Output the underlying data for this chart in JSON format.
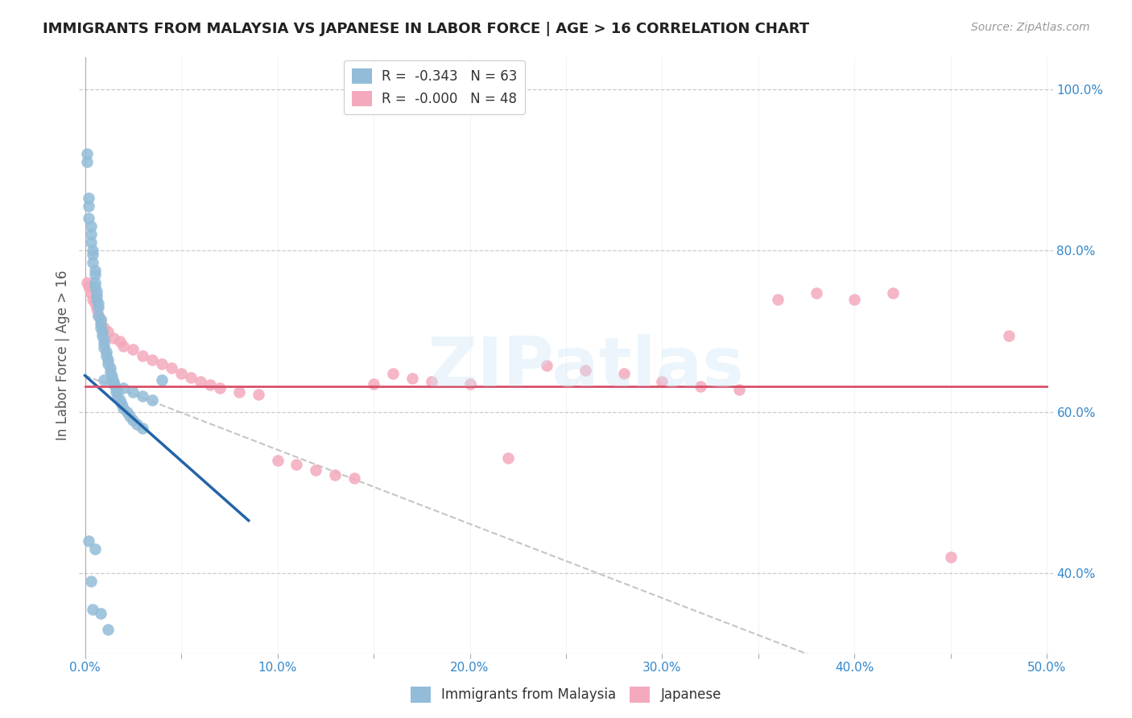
{
  "title": "IMMIGRANTS FROM MALAYSIA VS JAPANESE IN LABOR FORCE | AGE > 16 CORRELATION CHART",
  "source": "Source: ZipAtlas.com",
  "ylabel_left": "In Labor Force | Age > 16",
  "xlim": [
    -0.003,
    0.503
  ],
  "ylim": [
    0.3,
    1.04
  ],
  "xtick_positions": [
    0.0,
    0.05,
    0.1,
    0.15,
    0.2,
    0.25,
    0.3,
    0.35,
    0.4,
    0.45,
    0.5
  ],
  "xticklabels": [
    "0.0%",
    "",
    "10.0%",
    "",
    "20.0%",
    "",
    "30.0%",
    "",
    "40.0%",
    "",
    "50.0%"
  ],
  "yticks_right": [
    0.4,
    0.6,
    0.8,
    1.0
  ],
  "yticklabels_right": [
    "40.0%",
    "60.0%",
    "80.0%",
    "100.0%"
  ],
  "watermark": "ZIPatlas",
  "legend_line1": "R =  -0.343   N = 63",
  "legend_line2": "R =  -0.000   N = 48",
  "color_blue": "#92bcd8",
  "color_pink": "#f4a9bc",
  "trend_blue": "#2563a8",
  "trend_red": "#d94f6a",
  "trend_gray": "#bbbbbb",
  "blue_x": [
    0.001,
    0.001,
    0.002,
    0.002,
    0.002,
    0.003,
    0.003,
    0.003,
    0.004,
    0.004,
    0.004,
    0.005,
    0.005,
    0.005,
    0.005,
    0.006,
    0.006,
    0.006,
    0.007,
    0.007,
    0.007,
    0.008,
    0.008,
    0.008,
    0.009,
    0.009,
    0.01,
    0.01,
    0.01,
    0.011,
    0.011,
    0.012,
    0.012,
    0.013,
    0.013,
    0.014,
    0.014,
    0.015,
    0.015,
    0.016,
    0.016,
    0.017,
    0.018,
    0.019,
    0.02,
    0.022,
    0.023,
    0.025,
    0.027,
    0.03,
    0.002,
    0.003,
    0.004,
    0.01,
    0.015,
    0.02,
    0.025,
    0.03,
    0.035,
    0.04,
    0.005,
    0.008,
    0.012
  ],
  "blue_y": [
    0.92,
    0.91,
    0.865,
    0.855,
    0.84,
    0.83,
    0.82,
    0.81,
    0.8,
    0.795,
    0.785,
    0.775,
    0.77,
    0.76,
    0.755,
    0.75,
    0.745,
    0.74,
    0.735,
    0.73,
    0.72,
    0.715,
    0.71,
    0.705,
    0.7,
    0.695,
    0.69,
    0.685,
    0.68,
    0.675,
    0.67,
    0.665,
    0.66,
    0.655,
    0.65,
    0.645,
    0.64,
    0.638,
    0.635,
    0.63,
    0.625,
    0.62,
    0.615,
    0.61,
    0.605,
    0.6,
    0.595,
    0.59,
    0.585,
    0.58,
    0.44,
    0.39,
    0.355,
    0.64,
    0.635,
    0.63,
    0.625,
    0.62,
    0.615,
    0.64,
    0.43,
    0.35,
    0.33
  ],
  "pink_x": [
    0.001,
    0.002,
    0.003,
    0.004,
    0.005,
    0.006,
    0.007,
    0.008,
    0.01,
    0.012,
    0.015,
    0.018,
    0.02,
    0.025,
    0.03,
    0.035,
    0.04,
    0.045,
    0.05,
    0.055,
    0.06,
    0.065,
    0.07,
    0.08,
    0.09,
    0.1,
    0.11,
    0.12,
    0.13,
    0.14,
    0.15,
    0.16,
    0.17,
    0.18,
    0.2,
    0.22,
    0.24,
    0.26,
    0.28,
    0.3,
    0.32,
    0.34,
    0.36,
    0.38,
    0.4,
    0.42,
    0.45,
    0.48
  ],
  "pink_y": [
    0.76,
    0.755,
    0.748,
    0.74,
    0.735,
    0.728,
    0.72,
    0.715,
    0.705,
    0.7,
    0.692,
    0.688,
    0.682,
    0.678,
    0.67,
    0.665,
    0.66,
    0.655,
    0.648,
    0.643,
    0.638,
    0.634,
    0.63,
    0.625,
    0.622,
    0.54,
    0.535,
    0.528,
    0.522,
    0.518,
    0.635,
    0.648,
    0.642,
    0.638,
    0.635,
    0.543,
    0.658,
    0.652,
    0.648,
    0.638,
    0.632,
    0.628,
    0.74,
    0.748,
    0.74,
    0.748,
    0.42,
    0.695
  ],
  "blue_trend_x": [
    0.0,
    0.085
  ],
  "blue_trend_y": [
    0.645,
    0.465
  ],
  "red_trend_x": [
    0.0,
    0.5
  ],
  "red_trend_y": [
    0.632,
    0.632
  ],
  "gray_trend_x": [
    0.0,
    0.38
  ],
  "gray_trend_y": [
    0.645,
    0.295
  ],
  "title_fontsize": 13,
  "source_fontsize": 10,
  "tick_fontsize": 11,
  "ylabel_fontsize": 12,
  "legend_fontsize": 12
}
